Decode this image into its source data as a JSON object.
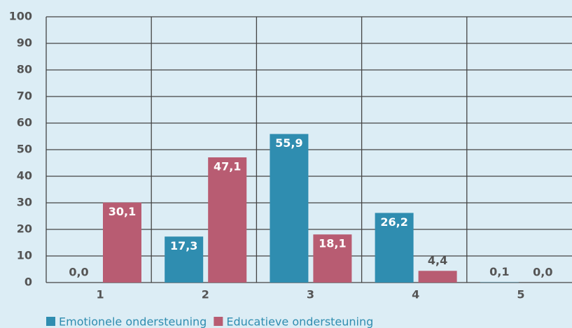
{
  "chart_data": {
    "type": "bar",
    "categories": [
      "1",
      "2",
      "3",
      "4",
      "5"
    ],
    "series": [
      {
        "name": "Emotionele ondersteuning",
        "color": "#2f8db0",
        "values": [
          0.0,
          17.3,
          55.9,
          26.2,
          0.1
        ],
        "value_labels": [
          "0,0",
          "17,3",
          "55,9",
          "26,2",
          "0,1"
        ]
      },
      {
        "name": "Educatieve ondersteuning",
        "color": "#b85c72",
        "values": [
          30.1,
          47.1,
          18.1,
          4.4,
          0.0
        ],
        "value_labels": [
          "30,1",
          "47,1",
          "18,1",
          "4,4",
          "0,0"
        ]
      }
    ],
    "ylim": [
      0,
      100
    ],
    "yticks": [
      0,
      10,
      20,
      30,
      40,
      50,
      60,
      70,
      80,
      90,
      100
    ],
    "grid": true,
    "legend": "bottom"
  }
}
